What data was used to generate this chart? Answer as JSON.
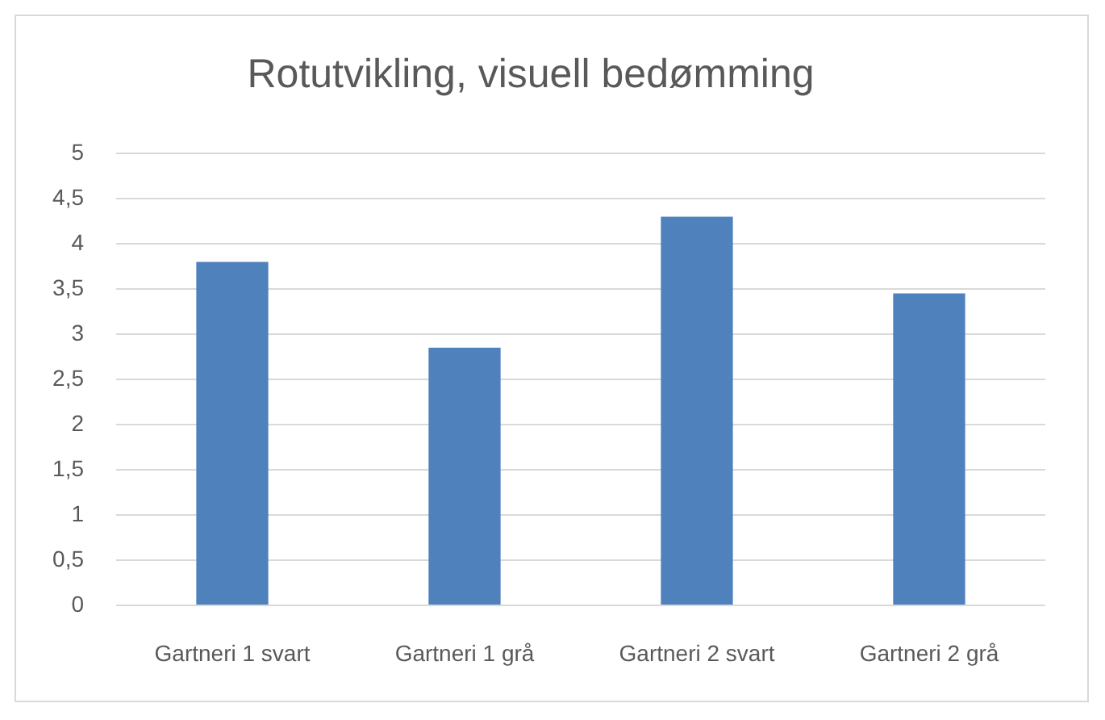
{
  "chart_data": {
    "type": "bar",
    "title": "Rotutvikling, visuell bedømming",
    "categories": [
      "Gartneri 1 svart",
      "Gartneri 1 grå",
      "Gartneri 2 svart",
      "Gartneri 2 grå"
    ],
    "values": [
      3.8,
      2.85,
      4.3,
      3.45
    ],
    "color": "#4f81bd",
    "ylim": [
      0,
      5
    ],
    "yticks": [
      0,
      {
        "value": 0.5,
        "label": "0,5"
      },
      1,
      {
        "value": 1.5,
        "label": "1,5"
      },
      2,
      {
        "value": 2.5,
        "label": "2,5"
      },
      3,
      {
        "value": 3.5,
        "label": "3,5"
      },
      4,
      {
        "value": 4.5,
        "label": "4,5"
      },
      5
    ],
    "grid": "y"
  }
}
